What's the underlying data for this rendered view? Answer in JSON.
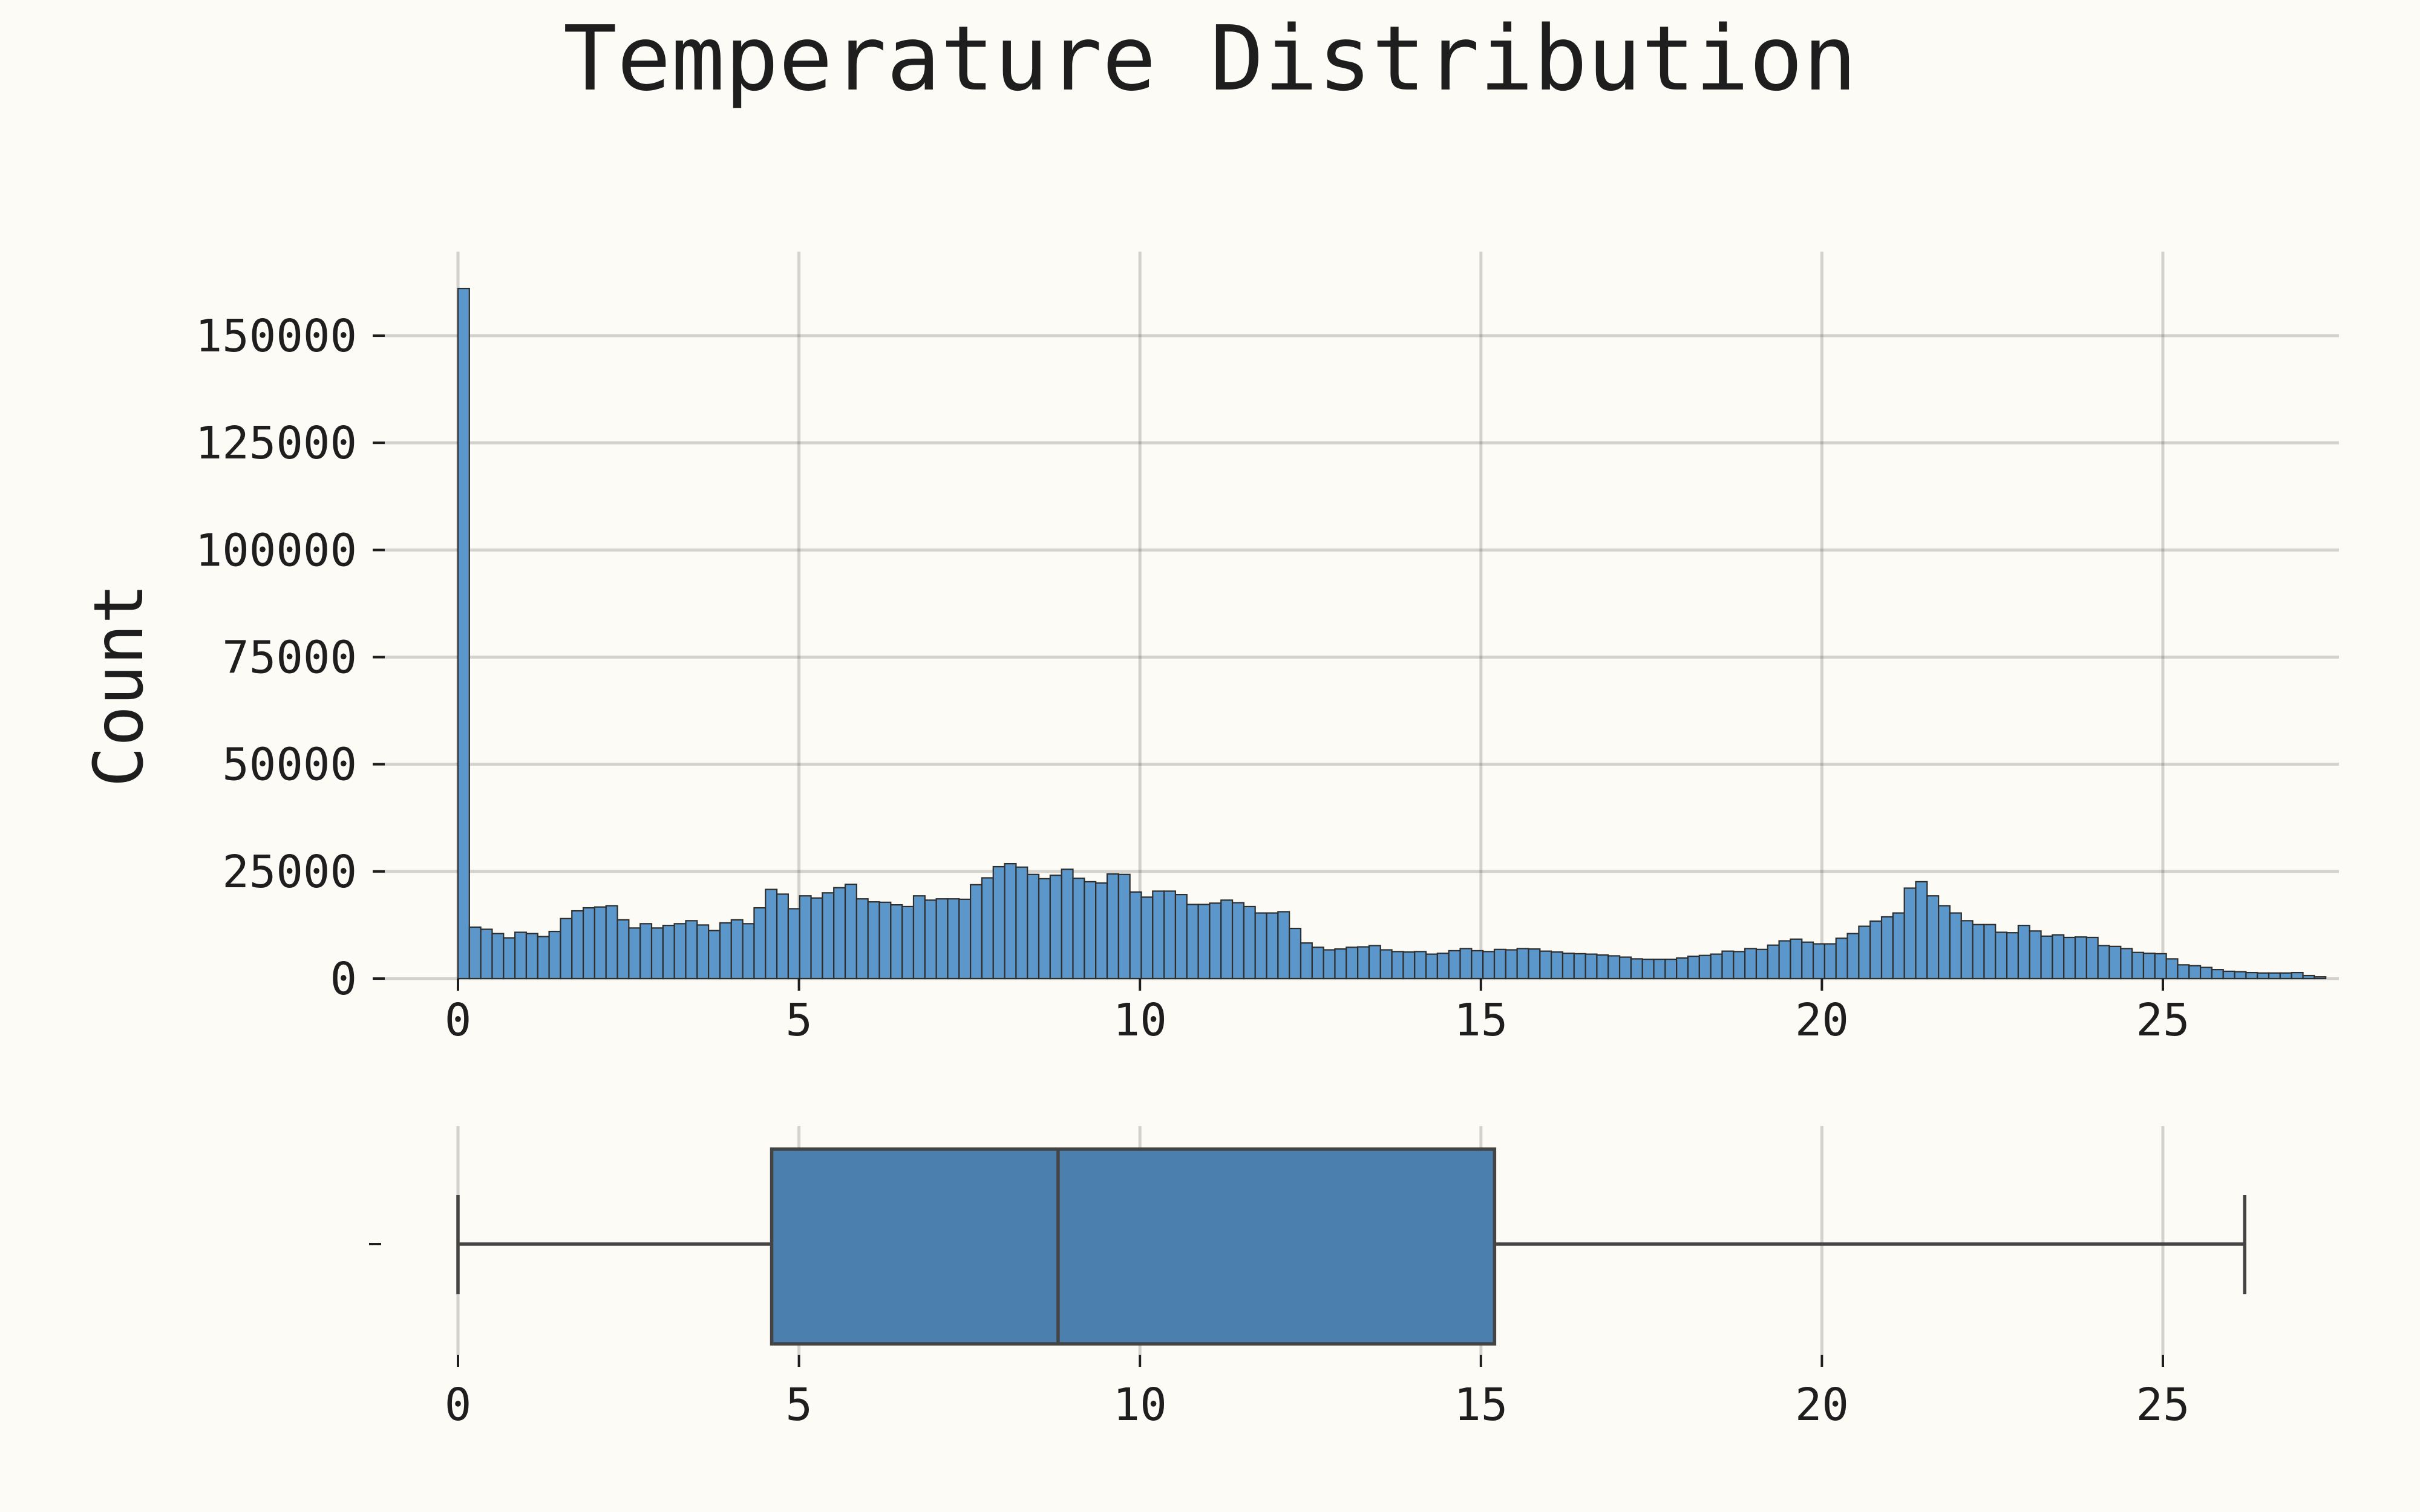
{
  "chart_data": [
    {
      "type": "bar",
      "subtype": "histogram",
      "title": "Temperature Distribution",
      "xlabel": "",
      "ylabel": "Count",
      "xlim": [
        -1.3,
        27.5
      ],
      "ylim": [
        0,
        168000
      ],
      "x_ticks": [
        0,
        5,
        10,
        15,
        20,
        25
      ],
      "y_ticks": [
        0,
        25000,
        50000,
        75000,
        100000,
        125000,
        150000
      ],
      "bin_start": 0,
      "bin_width": 0.167,
      "grid": true,
      "color": "#5b97cb",
      "edge_color": "#2e2e2e",
      "values": [
        161000,
        12000,
        11500,
        10500,
        9500,
        10800,
        10500,
        9800,
        11000,
        14000,
        15800,
        16500,
        16700,
        17000,
        13700,
        11800,
        12800,
        11800,
        12400,
        12800,
        13500,
        12500,
        11200,
        13000,
        13700,
        12800,
        16500,
        20800,
        19700,
        16300,
        19300,
        18800,
        20000,
        21200,
        22000,
        18600,
        17900,
        17800,
        17200,
        16800,
        19300,
        18300,
        18600,
        18600,
        18500,
        21900,
        23500,
        26100,
        26800,
        26000,
        24300,
        23300,
        24100,
        25500,
        23400,
        22600,
        22300,
        24400,
        24300,
        20200,
        19000,
        20400,
        20400,
        19600,
        17300,
        17300,
        17600,
        18300,
        17700,
        16800,
        15300,
        15300,
        15600,
        11700,
        8300,
        7300,
        6700,
        6900,
        7300,
        7400,
        7700,
        6700,
        6300,
        6200,
        6300,
        5700,
        5900,
        6500,
        7000,
        6500,
        6300,
        6800,
        6700,
        7000,
        6900,
        6400,
        6200,
        5900,
        5800,
        5700,
        5500,
        5300,
        5000,
        4600,
        4500,
        4500,
        4500,
        4800,
        5200,
        5400,
        5700,
        6400,
        6300,
        7000,
        6800,
        7800,
        8800,
        9200,
        8500,
        8100,
        8100,
        9400,
        10500,
        12200,
        13400,
        14400,
        15300,
        21100,
        22600,
        19300,
        17000,
        15300,
        13500,
        12600,
        12600,
        10800,
        10700,
        12400,
        11100,
        9900,
        10200,
        9600,
        9700,
        9600,
        7700,
        7500,
        7000,
        6100,
        5900,
        5800,
        4600,
        3200,
        3000,
        2600,
        2100,
        1700,
        1600,
        1400,
        1300,
        1300,
        1300,
        1400,
        700,
        400
      ]
    },
    {
      "type": "box",
      "orientation": "horizontal",
      "xlim": [
        -1.3,
        27.5
      ],
      "x_ticks": [
        0,
        5,
        10,
        15,
        20,
        25
      ],
      "y_tick_labels": [
        ""
      ],
      "whisker_low": 0,
      "q1": 4.6,
      "median": 8.8,
      "q3": 15.2,
      "whisker_high": 26.2,
      "grid": true,
      "color": "#4a7fae"
    }
  ]
}
